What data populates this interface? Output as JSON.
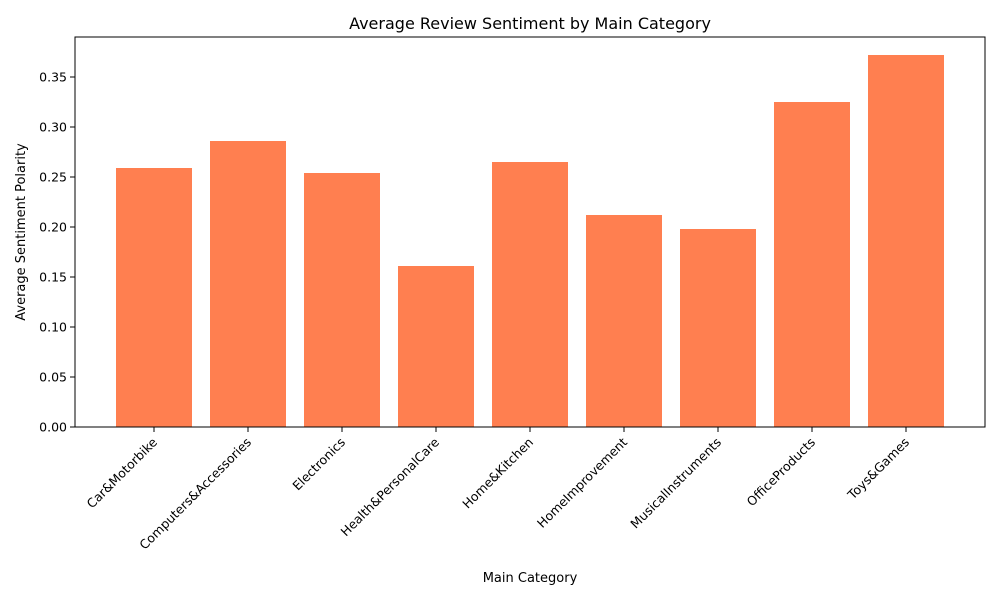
{
  "chart_data": {
    "type": "bar",
    "title": "Average Review Sentiment by Main Category",
    "xlabel": "Main Category",
    "ylabel": "Average Sentiment Polarity",
    "categories": [
      "Car&Motorbike",
      "Computers&Accessories",
      "Electronics",
      "Health&PersonalCare",
      "Home&Kitchen",
      "HomeImprovement",
      "MusicalInstruments",
      "OfficeProducts",
      "Toys&Games"
    ],
    "values": [
      0.259,
      0.286,
      0.254,
      0.161,
      0.265,
      0.212,
      0.198,
      0.325,
      0.372
    ],
    "ylim": [
      0,
      0.39
    ],
    "yticks": [
      0.0,
      0.05,
      0.1,
      0.15,
      0.2,
      0.25,
      0.3,
      0.35
    ],
    "ytick_labels": [
      "0.00",
      "0.05",
      "0.10",
      "0.15",
      "0.20",
      "0.25",
      "0.30",
      "0.35"
    ],
    "bar_color": "#ff7f50",
    "grid": false,
    "legend": "none"
  }
}
